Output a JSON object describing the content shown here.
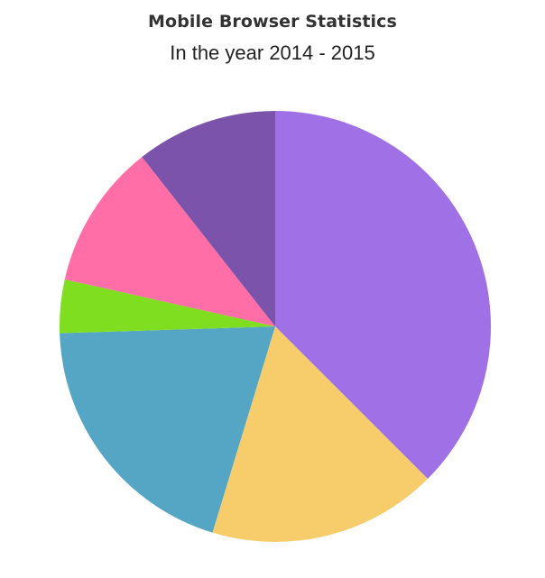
{
  "chart_data": {
    "type": "pie",
    "title": "Mobile Browser Statistics",
    "subtitle": "In the year 2014 - 2015",
    "start_angle_deg": 0,
    "direction": "clockwise",
    "slices": [
      {
        "value": 37.5,
        "color": "#A070E6"
      },
      {
        "value": 17.2,
        "color": "#F7CD6B"
      },
      {
        "value": 19.8,
        "color": "#55A5C4"
      },
      {
        "value": 4.0,
        "color": "#7FDE1F"
      },
      {
        "value": 10.9,
        "color": "#FF6EA6"
      },
      {
        "value": 10.6,
        "color": "#7B53AA"
      }
    ]
  }
}
